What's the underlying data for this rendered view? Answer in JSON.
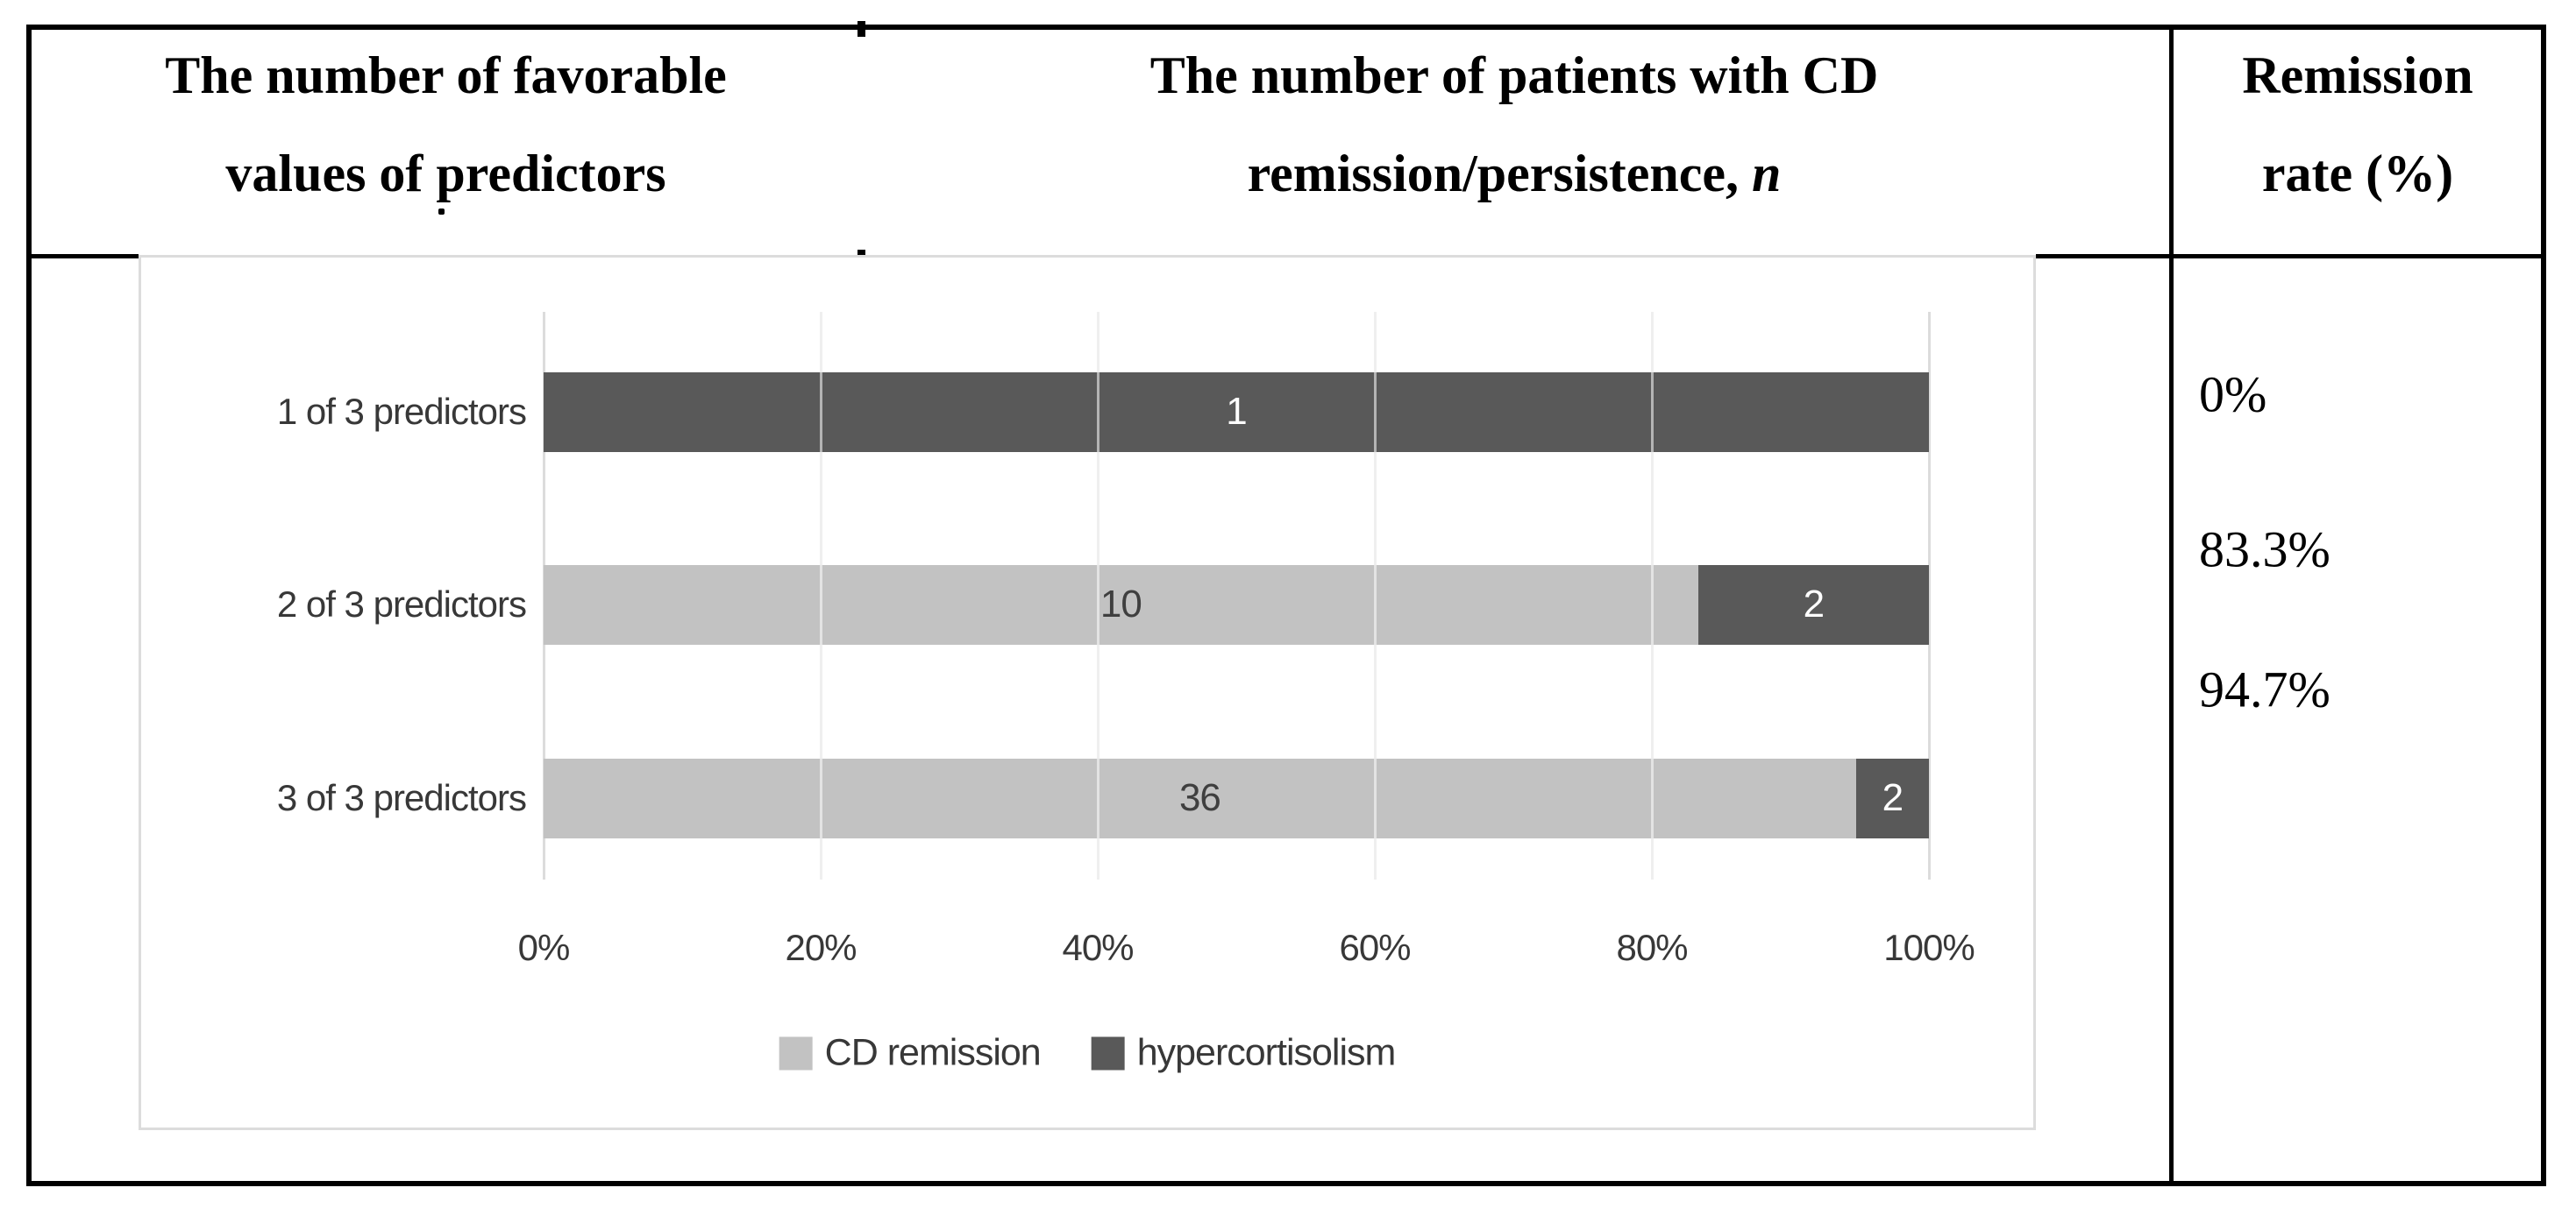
{
  "table": {
    "columns": [
      {
        "header_lines": [
          "The number of favorable",
          "values of predictors"
        ]
      },
      {
        "header_lines": [
          "The number of patients with CD",
          "remission/persistence, "
        ],
        "header_italic_suffix": "n"
      },
      {
        "header_lines": [
          "Remission",
          "rate (%)"
        ]
      }
    ],
    "remission_rates": [
      "0%",
      "83.3%",
      "94.7%"
    ]
  },
  "chart_data": {
    "type": "bar",
    "orientation": "horizontal",
    "stacked": true,
    "stacked_100_percent": true,
    "categories": [
      "1 of 3 predictors",
      "2 of 3 predictors",
      "3 of 3 predictors"
    ],
    "series": [
      {
        "name": "CD remission",
        "color": "#c2c2c2",
        "values": [
          0,
          10,
          36
        ]
      },
      {
        "name": "hypercortisolism",
        "color": "#595959",
        "values": [
          1,
          2,
          2
        ]
      }
    ],
    "x_ticks": [
      "0%",
      "20%",
      "40%",
      "60%",
      "80%",
      "100%"
    ],
    "xlim": [
      0,
      1
    ],
    "grid": true,
    "legend_position": "bottom",
    "bar_labels_shown": true,
    "bar_label_color_on_light": "#3f3f3f",
    "bar_label_color_on_dark": "#ffffff"
  }
}
